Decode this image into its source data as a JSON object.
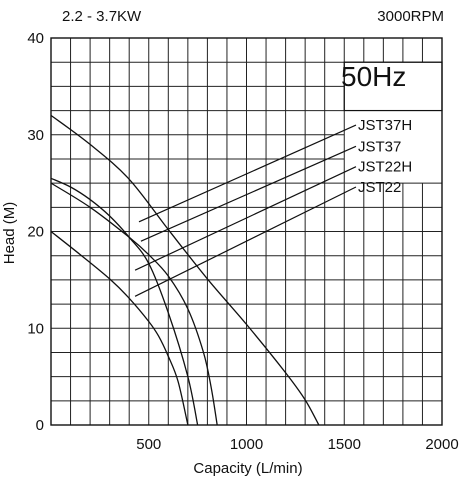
{
  "header": {
    "rating": "2.2 - 3.7KW",
    "speed": "3000RPM"
  },
  "chart_data": {
    "type": "line",
    "title": "",
    "frequency_label": "50Hz",
    "xlabel": "Capacity (L/min)",
    "ylabel": "Head  (M)",
    "xlim": [
      0,
      2000
    ],
    "ylim": [
      0,
      40
    ],
    "xticks": [
      500,
      1000,
      1500,
      2000
    ],
    "yticks": [
      0,
      10,
      20,
      30,
      40
    ],
    "grid": true,
    "grid_step": {
      "x": 100,
      "y": 2.5
    },
    "legend_position": "right, with leader lines to the curves",
    "series": [
      {
        "name": "JST37H",
        "x": [
          0,
          200,
          400,
          600,
          800,
          1000,
          1200,
          1300,
          1370
        ],
        "y": [
          32,
          29,
          25.4,
          20.2,
          15.1,
          10.4,
          5.4,
          2.6,
          0
        ]
      },
      {
        "name": "JST37",
        "x": [
          0,
          200,
          400,
          500,
          600,
          700,
          780,
          820,
          850
        ],
        "y": [
          25,
          22.5,
          19.4,
          17.6,
          15.4,
          12,
          7.5,
          3.8,
          0
        ]
      },
      {
        "name": "JST22H",
        "x": [
          0,
          100,
          200,
          300,
          400,
          500,
          600,
          700,
          750
        ],
        "y": [
          25.5,
          24.6,
          23.3,
          21.6,
          19.4,
          16.7,
          11.6,
          5,
          0
        ]
      },
      {
        "name": "JST22",
        "x": [
          0,
          150,
          300,
          400,
          500,
          550,
          600,
          650,
          700
        ],
        "y": [
          20,
          17.6,
          15.1,
          13.1,
          10.7,
          9.2,
          7.1,
          4.5,
          0
        ]
      }
    ]
  }
}
